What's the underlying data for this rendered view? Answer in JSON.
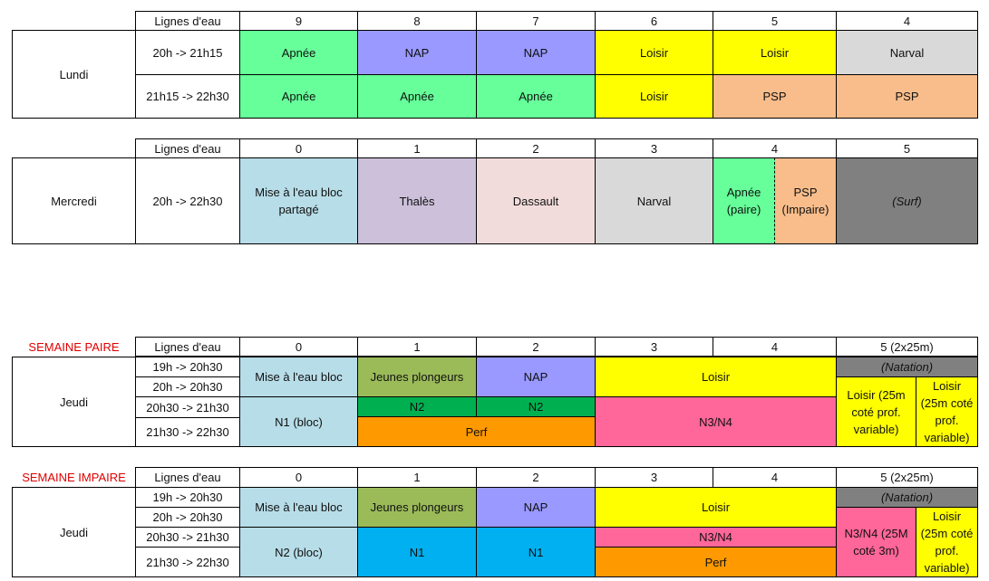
{
  "colors": {
    "apnee": "#66ff99",
    "nap": "#9999ff",
    "loisir": "#ffff00",
    "narval": "#d9d9d9",
    "psp": "#f8bd8b",
    "mise": "#b7dde8",
    "thales": "#ccc0da",
    "dassault": "#f2dcdb",
    "surf": "#808080",
    "jeunes": "#9bbb59",
    "n2": "#00b050",
    "perf": "#ff9900",
    "n3n4": "#ff6699",
    "n1": "#00b0f0",
    "label_red": "#e00000"
  },
  "lundi": {
    "header_label": "Lignes d'eau",
    "lanes": [
      "9",
      "8",
      "7",
      "6",
      "5",
      "4"
    ],
    "day": "Lundi",
    "rows": [
      {
        "time": "20h -> 21h15",
        "cells": [
          "Apnée",
          "NAP",
          "NAP",
          "Loisir",
          "Loisir",
          "Narval"
        ]
      },
      {
        "time": "21h15 -> 22h30",
        "cells": [
          "Apnée",
          "Apnée",
          "Apnée",
          "Loisir",
          "PSP",
          "PSP"
        ]
      }
    ]
  },
  "mercredi": {
    "header_label": "Lignes d'eau",
    "lanes": [
      "0",
      "1",
      "2",
      "3",
      "4",
      "5"
    ],
    "day": "Mercredi",
    "time": "20h -> 22h30",
    "cells": [
      "Mise à l'eau bloc partagé",
      "Thalès",
      "Dassault",
      "Narval",
      "Apnée (paire)",
      "PSP (Impaire)",
      "(Surf)"
    ]
  },
  "jeudi_paire": {
    "week_label": "SEMAINE PAIRE",
    "header_label": "Lignes d'eau",
    "lanes": [
      "0",
      "1",
      "2",
      "3",
      "4",
      "5 (2x25m)"
    ],
    "day": "Jeudi",
    "times": [
      "19h -> 20h30",
      "20h -> 20h30",
      "20h30 -> 21h30",
      "21h30 -> 22h30"
    ],
    "mise": "Mise à l'eau bloc",
    "n1_bloc": "N1 (bloc)",
    "jeunes": "Jeunes plongeurs",
    "nap": "NAP",
    "n2a": "N2",
    "n2b": "N2",
    "perf": "Perf",
    "loisir": "Loisir",
    "n3n4": "N3/N4",
    "natation": "(Natation)",
    "loisir_a": "Loisir (25m coté prof. variable)",
    "loisir_b": "Loisir (25m coté prof. variable)"
  },
  "jeudi_impaire": {
    "week_label": "SEMAINE IMPAIRE",
    "header_label": "Lignes d'eau",
    "lanes": [
      "0",
      "1",
      "2",
      "3",
      "4",
      "5 (2x25m)"
    ],
    "day": "Jeudi",
    "times": [
      "19h -> 20h30",
      "20h -> 20h30",
      "20h30 -> 21h30",
      "21h30 -> 22h30"
    ],
    "mise": "Mise à l'eau bloc",
    "n2_bloc": "N2 (bloc)",
    "jeunes": "Jeunes plongeurs",
    "nap": "NAP",
    "n1a": "N1",
    "n1b": "N1",
    "loisir": "Loisir",
    "n3n4": "N3/N4",
    "perf": "Perf",
    "natation": "(Natation)",
    "n3n4_25": "N3/N4  (25M coté 3m)",
    "loisir_b": "Loisir (25m coté prof. variable)"
  }
}
